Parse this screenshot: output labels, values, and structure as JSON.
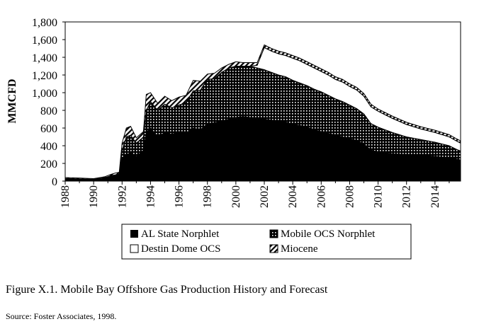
{
  "figure": {
    "caption": "Figure X.1.  Mobile Bay Offshore Gas Production History and Forecast",
    "source": "Source: Foster Associates, 1998."
  },
  "chart_data": {
    "type": "area",
    "stacked": true,
    "ylabel": "MMCFD",
    "xlabel": "",
    "title": "",
    "xlim": [
      1988,
      2015.8
    ],
    "ylim": [
      0,
      1800
    ],
    "yticks": [
      0,
      200,
      400,
      600,
      800,
      1000,
      1200,
      1400,
      1600,
      1800
    ],
    "ytick_labels": [
      "0",
      "200",
      "400",
      "600",
      "800",
      "1,000",
      "1,200",
      "1,400",
      "1,600",
      "1,800"
    ],
    "xticks": [
      1988,
      1990,
      1992,
      1994,
      1996,
      1998,
      2000,
      2002,
      2004,
      2006,
      2008,
      2010,
      2012,
      2014
    ],
    "xtick_labels": [
      "1988",
      "1990",
      "1992",
      "1994",
      "1996",
      "1998",
      "2000",
      "2002",
      "2004",
      "2006",
      "2008",
      "2010",
      "2012",
      "2014"
    ],
    "legend_placement": "below",
    "legend": [
      "AL State Norphlet",
      "Mobile OCS Norphlet",
      "Destin Dome OCS",
      "Miocene"
    ],
    "x": [
      1988.0,
      1989.0,
      1990.0,
      1990.8,
      1991.2,
      1991.5,
      1991.8,
      1992.0,
      1992.3,
      1992.6,
      1993.0,
      1993.5,
      1993.7,
      1994.0,
      1994.5,
      1995.0,
      1995.5,
      1996.0,
      1996.5,
      1997.0,
      1997.5,
      1998.0,
      1998.5,
      1999.0,
      1999.5,
      2000.0,
      2000.5,
      2001.0,
      2001.5,
      2002.0,
      2002.5,
      2003.0,
      2003.5,
      2004.0,
      2004.5,
      2005.0,
      2005.5,
      2006.0,
      2006.5,
      2007.0,
      2007.5,
      2008.0,
      2008.5,
      2009.0,
      2009.5,
      2010.0,
      2010.5,
      2011.0,
      2011.5,
      2012.0,
      2012.5,
      2013.0,
      2013.5,
      2014.0,
      2014.5,
      2015.0,
      2015.5,
      2015.8
    ],
    "series": [
      {
        "name": "AL State Norphlet",
        "values": [
          30,
          25,
          20,
          40,
          60,
          70,
          80,
          250,
          300,
          320,
          280,
          350,
          550,
          600,
          500,
          550,
          530,
          560,
          540,
          600,
          580,
          650,
          660,
          680,
          700,
          720,
          730,
          720,
          710,
          700,
          690,
          680,
          670,
          640,
          630,
          610,
          580,
          560,
          540,
          520,
          500,
          480,
          460,
          420,
          350,
          330,
          320,
          310,
          305,
          300,
          295,
          290,
          285,
          280,
          270,
          260,
          250,
          240
        ]
      },
      {
        "name": "Mobile OCS Norphlet",
        "values": [
          0,
          0,
          0,
          0,
          0,
          0,
          0,
          100,
          200,
          200,
          150,
          150,
          250,
          300,
          300,
          320,
          300,
          300,
          350,
          420,
          450,
          500,
          500,
          550,
          580,
          580,
          570,
          580,
          570,
          560,
          540,
          520,
          510,
          500,
          480,
          470,
          460,
          450,
          430,
          410,
          400,
          380,
          360,
          340,
          300,
          280,
          260,
          240,
          220,
          200,
          190,
          180,
          170,
          160,
          150,
          140,
          110,
          100
        ]
      },
      {
        "name": "Destin Dome OCS",
        "values": [
          0,
          0,
          0,
          0,
          0,
          0,
          0,
          0,
          0,
          0,
          0,
          0,
          0,
          0,
          0,
          0,
          0,
          0,
          0,
          0,
          0,
          0,
          0,
          0,
          0,
          0,
          0,
          0,
          30,
          250,
          240,
          240,
          240,
          250,
          250,
          240,
          240,
          230,
          230,
          220,
          220,
          210,
          210,
          200,
          190,
          180,
          170,
          160,
          150,
          140,
          130,
          120,
          115,
          110,
          105,
          100,
          95,
          90
        ]
      },
      {
        "name": "Miocene",
        "values": [
          10,
          10,
          8,
          10,
          15,
          20,
          20,
          80,
          100,
          100,
          60,
          60,
          180,
          100,
          80,
          90,
          80,
          90,
          80,
          120,
          100,
          60,
          60,
          50,
          40,
          50,
          40,
          40,
          30,
          30,
          30,
          30,
          30,
          30,
          30,
          30,
          30,
          30,
          30,
          30,
          30,
          30,
          30,
          30,
          30,
          25,
          25,
          25,
          25,
          25,
          25,
          25,
          25,
          25,
          25,
          25,
          25,
          25
        ]
      }
    ]
  }
}
